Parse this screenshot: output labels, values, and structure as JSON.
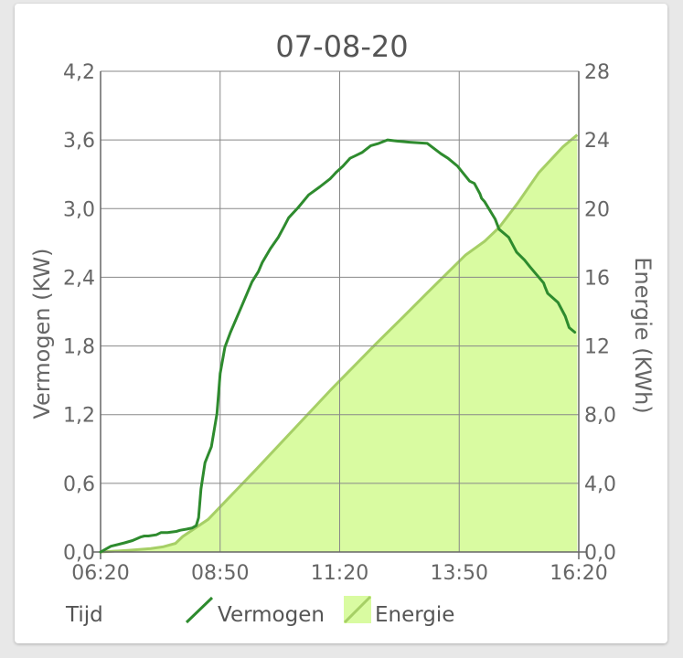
{
  "chart_data": {
    "type": "line+area",
    "title": "07-08-20",
    "xlabel": "Tijd",
    "y_left_label": "Vermogen (KW)",
    "y_right_label": "Energie (KWh)",
    "x_ticks": [
      "06:20",
      "08:50",
      "11:20",
      "13:50",
      "16:20"
    ],
    "x_range_minutes": [
      380,
      980
    ],
    "y_left_ticks": [
      "0,0",
      "0,6",
      "1,2",
      "1,8",
      "2,4",
      "3,0",
      "3,6",
      "4,2"
    ],
    "y_left_range": [
      0,
      4.2
    ],
    "y_right_ticks": [
      "0,0",
      "4,0",
      "8,0",
      "12",
      "16",
      "20",
      "24",
      "28"
    ],
    "y_right_range": [
      0,
      28
    ],
    "grid": true,
    "legend_position": "bottom",
    "series": [
      {
        "name": "Vermogen",
        "axis": "left",
        "style": "line",
        "color": "#2e8b2e",
        "x_minutes": [
          380,
          393,
          410,
          420,
          430,
          435,
          440,
          450,
          456,
          464,
          475,
          480,
          488,
          495,
          500,
          503,
          506,
          511,
          515,
          519,
          526,
          530,
          536,
          543,
          556,
          570,
          578,
          583,
          593,
          603,
          610,
          616,
          628,
          641,
          655,
          668,
          672,
          676,
          684,
          693,
          699,
          708,
          719,
          729,
          740,
          752,
          768,
          790,
          807,
          816,
          828,
          843,
          849,
          856,
          858,
          862,
          875,
          880,
          892,
          902,
          912,
          919,
          936,
          938,
          941,
          954,
          963,
          968,
          975
        ],
        "values": [
          0.0,
          0.05,
          0.08,
          0.1,
          0.13,
          0.14,
          0.14,
          0.15,
          0.17,
          0.17,
          0.18,
          0.19,
          0.2,
          0.21,
          0.23,
          0.3,
          0.55,
          0.78,
          0.85,
          0.92,
          1.21,
          1.56,
          1.79,
          1.92,
          2.13,
          2.36,
          2.45,
          2.53,
          2.65,
          2.75,
          2.84,
          2.92,
          3.01,
          3.12,
          3.19,
          3.26,
          3.29,
          3.32,
          3.37,
          3.44,
          3.46,
          3.49,
          3.55,
          3.57,
          3.6,
          3.59,
          3.58,
          3.57,
          3.48,
          3.44,
          3.37,
          3.24,
          3.22,
          3.13,
          3.09,
          3.06,
          2.91,
          2.82,
          2.75,
          2.62,
          2.55,
          2.49,
          2.35,
          2.31,
          2.26,
          2.18,
          2.06,
          1.96,
          1.92
        ]
      },
      {
        "name": "Energie",
        "axis": "right",
        "style": "area",
        "color": "#a6cf66",
        "fill": "#d9fba1",
        "x_minutes": [
          380,
          416,
          443,
          458,
          474,
          483,
          515,
          575,
          670,
          725,
          760,
          790,
          838,
          862,
          880,
          903,
          930,
          960,
          978
        ],
        "values": [
          0.0,
          0.1,
          0.2,
          0.3,
          0.5,
          0.9,
          1.9,
          4.8,
          9.5,
          12.1,
          13.7,
          15.1,
          17.3,
          18.1,
          18.9,
          20.3,
          22.1,
          23.6,
          24.3
        ]
      }
    ]
  }
}
